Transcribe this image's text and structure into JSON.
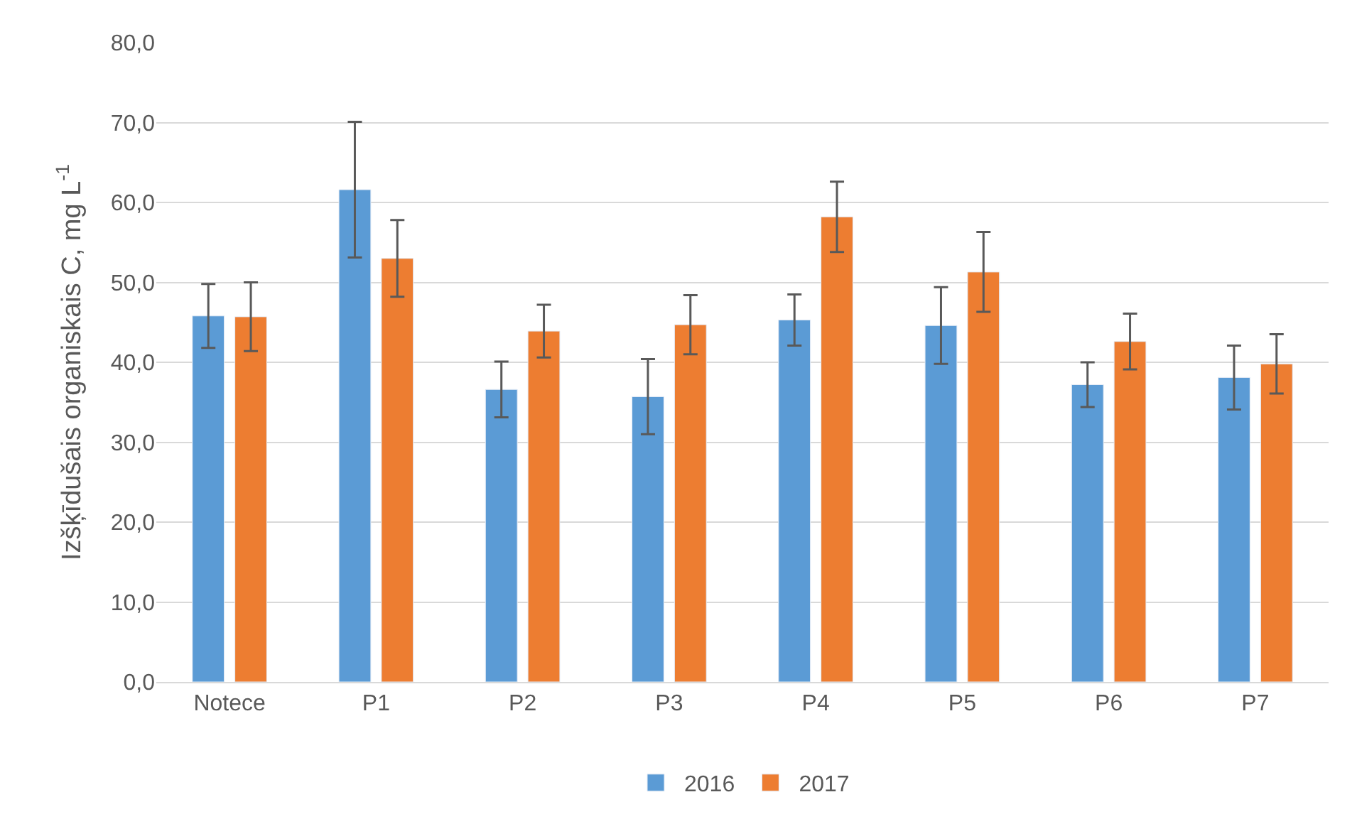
{
  "chart_data": {
    "type": "bar",
    "ylabel": "Izšķīdušais organiskais C, mg L$^{-1}$",
    "categories": [
      "Notece",
      "P1",
      "P2",
      "P3",
      "P4",
      "P5",
      "P6",
      "P7"
    ],
    "series": [
      {
        "name": "2016",
        "color": "#5b9bd5",
        "values": [
          45.8,
          61.6,
          36.6,
          35.7,
          45.3,
          44.6,
          37.2,
          38.1
        ],
        "errors": [
          4.0,
          8.5,
          3.5,
          4.7,
          3.2,
          4.8,
          2.8,
          4.0
        ]
      },
      {
        "name": "2017",
        "color": "#ed7d31",
        "values": [
          45.7,
          53.0,
          43.9,
          44.7,
          58.2,
          51.3,
          42.6,
          39.8
        ],
        "errors": [
          4.3,
          4.8,
          3.3,
          3.7,
          4.4,
          5.0,
          3.5,
          3.7
        ]
      }
    ],
    "ylim": [
      0,
      80
    ],
    "yticks": [
      {
        "value": 0,
        "label": "0,0"
      },
      {
        "value": 10,
        "label": "10,0"
      },
      {
        "value": 20,
        "label": "20,0"
      },
      {
        "value": 30,
        "label": "30,0"
      },
      {
        "value": 40,
        "label": "40,0"
      },
      {
        "value": 50,
        "label": "50,0"
      },
      {
        "value": 60,
        "label": "60,0"
      },
      {
        "value": 70,
        "label": "70,0"
      },
      {
        "value": 80,
        "label": "80,0"
      }
    ],
    "grid": "y",
    "legend": "bottom"
  }
}
